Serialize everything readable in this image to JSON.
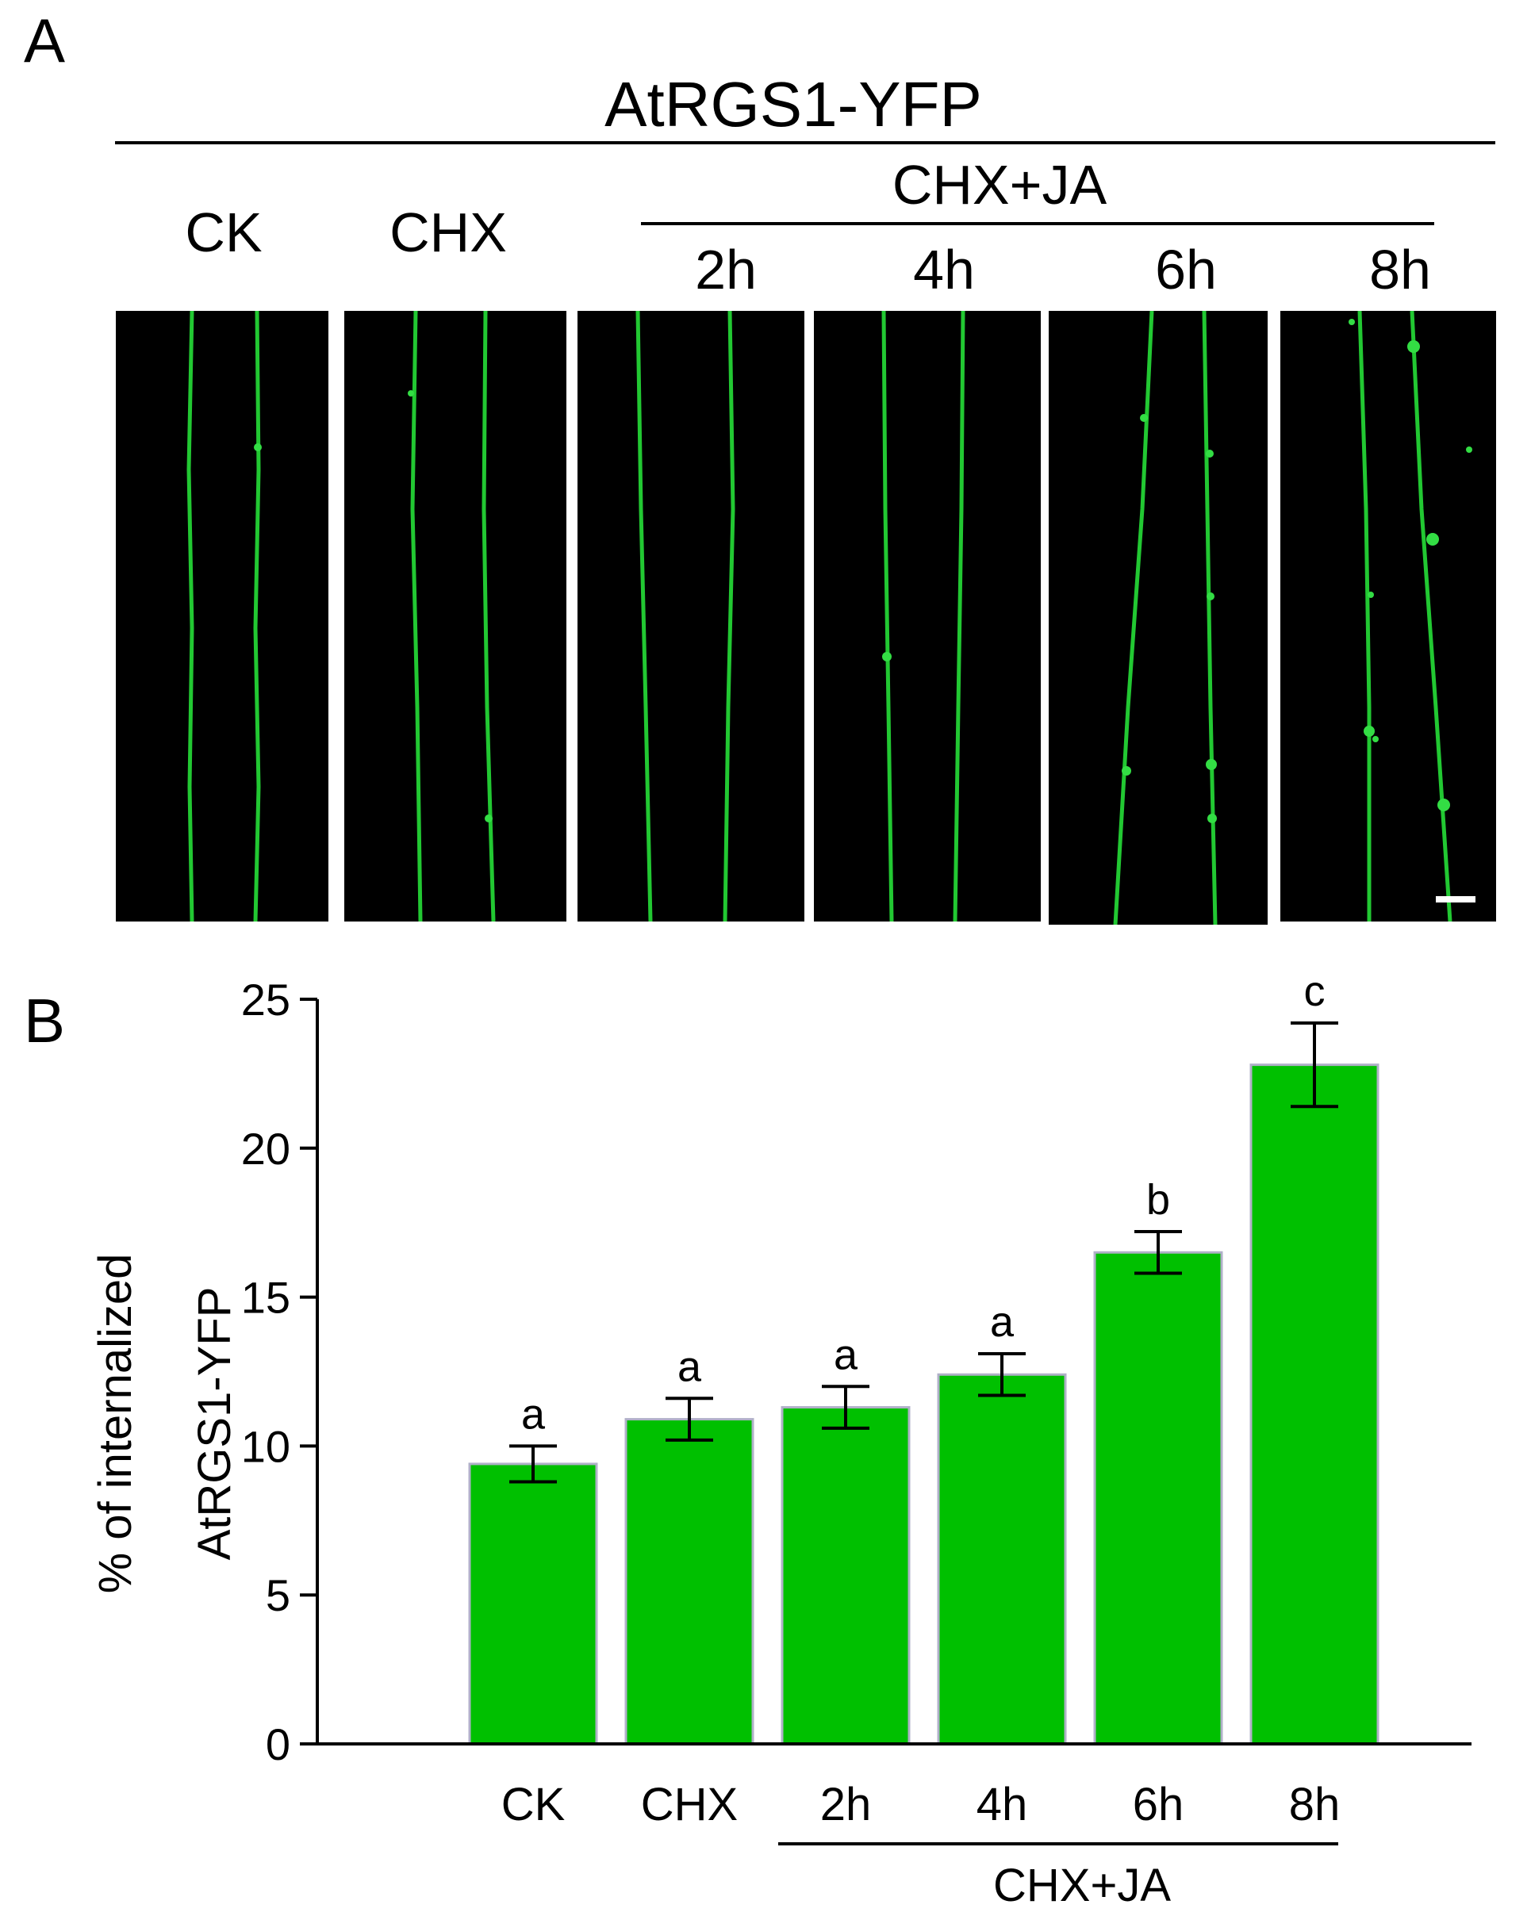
{
  "panel_a": {
    "letter": "A",
    "title": "AtRGS1-YFP",
    "group_label": "CHX+JA",
    "columns": [
      "CK",
      "CHX",
      "2h",
      "4h",
      "6h",
      "8h"
    ]
  },
  "panel_b": {
    "letter": "B"
  },
  "chart_data": {
    "type": "bar",
    "title": "",
    "categories": [
      "CK",
      "CHX",
      "2h",
      "4h",
      "6h",
      "8h"
    ],
    "values": [
      9.4,
      10.9,
      11.3,
      12.4,
      16.5,
      22.8
    ],
    "errors": [
      0.6,
      0.7,
      0.7,
      0.7,
      0.7,
      1.4
    ],
    "significance_letters": [
      "a",
      "a",
      "a",
      "a",
      "b",
      "c"
    ],
    "ylabel_line1": "% of internalized",
    "ylabel_line2": "AtRGS1-YFP",
    "xlabel": "",
    "group_label": "CHX+JA",
    "ylim": [
      0,
      25
    ],
    "yticks": [
      0,
      5,
      10,
      15,
      20,
      25
    ],
    "bar_color": "#00c000",
    "grid": false
  }
}
